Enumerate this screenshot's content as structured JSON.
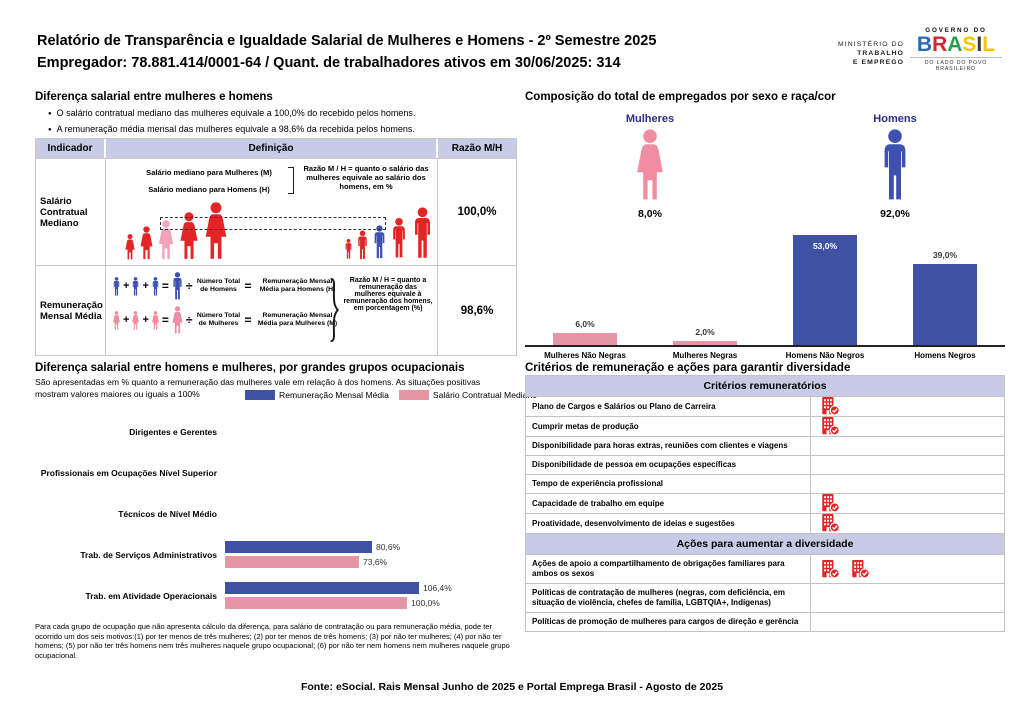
{
  "page": {
    "title": "Relatório de Transparência e Igualdade Salarial de Mulheres e Homens - 2º Semestre 2025",
    "subtitle": "Empregador: 78.881.414/0001-64 / Quant. de trabalhadores ativos em 30/06/2025: 314",
    "ministry": {
      "l1": "MINISTÉRIO DO",
      "l2": "TRABALHO",
      "l3": "E EMPREGO"
    },
    "gov": {
      "top": "GOVERNO DO",
      "brand_letters": [
        {
          "ch": "B",
          "color": "#2a6bb5"
        },
        {
          "ch": "R",
          "color": "#d3272e"
        },
        {
          "ch": "A",
          "color": "#2ba04c"
        },
        {
          "ch": "S",
          "color": "#f6c500"
        },
        {
          "ch": "I",
          "color": "#3a3a3a"
        },
        {
          "ch": "L",
          "color": "#f6c500"
        }
      ],
      "caption": "DO LADO DO POVO BRASILEIRO"
    }
  },
  "wage_gap": {
    "title": "Diferença salarial entre mulheres e homens",
    "bullets": [
      "O salário contratual mediano das mulheres equivale a 100,0% do recebido pelos homens.",
      "A remuneração média mensal das mulheres equivale a 98,6% da recebida pelos homens."
    ],
    "table_headers": [
      "Indicador",
      "Definição",
      "Razão M/H"
    ],
    "median_row": {
      "indicator": "Salário Contratual Mediano",
      "label_women": "Salário mediano para Mulheres (M)",
      "label_men": "Salário mediano para Homens (H)",
      "note": "Razão M / H = quanto o salário das mulheres equivale ao salário dos homens, em %",
      "ratio": "100,0%"
    },
    "average_row": {
      "indicator": "Remuneração Mensal Média",
      "men_divisor": "Número Total de Homens",
      "men_result": "Remuneração Mensal Média para Homens (H)",
      "women_divisor": "Número Total de Mulheres",
      "women_result": "Remuneração Mensal Média para Mulheres (M)",
      "note": "Razão M / H = quanto a remuneração das mulheres equivale à remuneração dos homens, em porcentagem (%)",
      "ratio": "98,6%"
    }
  },
  "composition": {
    "title": "Composição do total de empregados por sexo e raça/cor",
    "women_label": "Mulheres",
    "women_pct": "8,0%",
    "men_label": "Homens",
    "men_pct": "92,0%"
  },
  "occupational": {
    "title": "Diferença salarial entre homens e mulheres, por grandes grupos ocupacionais",
    "subtitle": "São apresentadas em % quanto a remuneração das mulheres vale em relação à dos homens. As situações positivas mostram valores maiores ou iguais a 100%",
    "footnote": "Para cada grupo de ocupação que não apresenta cálculo da diferença, para salário de contratação ou para remuneração média, pode ter ocorrido um dos seis motivos:(1) por ter menos de três mulheres; (2) por ter menos de três homens; (3) por não ter mulheres; (4) por não ter homens; (5) por não ter três homens nem três mulheres naquele grupo ocupacional; (6) por não ter nem homens nem mulheres naquele grupo ocupacional."
  },
  "criteria": {
    "title": "Critérios de remuneração e ações para garantir diversidade",
    "sections": [
      {
        "header": "Critérios remuneratórios",
        "rows": [
          {
            "label": "Plano de Cargos e Salários ou Plano de Carreira",
            "checks": 1
          },
          {
            "label": "Cumprir metas de produção",
            "checks": 1
          },
          {
            "label": "Disponibilidade para horas extras, reuniões com clientes e viagens",
            "checks": 0
          },
          {
            "label": "Disponibilidade de pessoa em ocupações específicas",
            "checks": 0
          },
          {
            "label": "Tempo de experiência profissional",
            "checks": 0
          },
          {
            "label": "Capacidade de trabalho em equipe",
            "checks": 1
          },
          {
            "label": "Proatividade, desenvolvimento de ideias e sugestões",
            "checks": 1
          }
        ]
      },
      {
        "header": "Ações para aumentar a diversidade",
        "rows": [
          {
            "label": "Ações de apoio a compartilhamento de obrigações familiares para ambos os sexos",
            "checks": 2
          },
          {
            "label": "Políticas de contratação de mulheres (negras, com deficiência, em situação de violência, chefes de família, LGBTQIA+, Indígenas)",
            "checks": 0
          },
          {
            "label": "Políticas de promoção de mulheres para cargos de direção e gerência",
            "checks": 0
          }
        ]
      }
    ]
  },
  "footer": "Fonte: eSocial. Rais Mensal Junho de 2025 e Portal Emprega Brasil - Agosto de 2025",
  "colors": {
    "blue": "#3f51a3",
    "pink_bar": "#e595a4",
    "red": "#e32526",
    "pink_icon": "#f18da3",
    "median_pink": "#f2a3ba",
    "median_blue": "#3e51ae",
    "navy_text": "#2c2e83",
    "lavender": "#c7cbe6"
  },
  "chart_data": [
    {
      "type": "bar",
      "title": "Composição do total de empregados por sexo e raça/cor",
      "categories": [
        "Mulheres Não Negras",
        "Mulheres Negras",
        "Homens Não Negros",
        "Homens Negros"
      ],
      "values": [
        6.0,
        2.0,
        53.0,
        39.0
      ],
      "labels": [
        "6,0%",
        "2,0%",
        "53,0%",
        "39,0%"
      ],
      "bar_colors": [
        "#e595a4",
        "#e595a4",
        "#3f51a3",
        "#3f51a3"
      ],
      "ylim": [
        0,
        57
      ],
      "grid": false,
      "summary": {
        "Mulheres": "8,0%",
        "Homens": "92,0%"
      }
    },
    {
      "type": "bar",
      "orientation": "horizontal",
      "title": "Diferença salarial entre homens e mulheres, por grandes grupos ocupacionais",
      "categories": [
        "Dirigentes e Gerentes",
        "Profissionais em Ocupações Nível Superior",
        "Técnicos de Nível Médio",
        "Trab. de Serviços Administrativos",
        "Trab. em Atividade Operacionais"
      ],
      "series": [
        {
          "name": "Remuneração Mensal Média",
          "color": "#3f51a3",
          "values": [
            null,
            null,
            null,
            80.6,
            106.4
          ],
          "labels": [
            "",
            "",
            "",
            "80,6%",
            "106,4%"
          ]
        },
        {
          "name": "Salário Contratual Mediano",
          "color": "#e595a4",
          "values": [
            null,
            null,
            null,
            73.6,
            100.0
          ],
          "labels": [
            "",
            "",
            "",
            "73,6%",
            "100,0%"
          ]
        }
      ],
      "xlim": [
        0,
        120
      ],
      "legend_position": "top",
      "grid": false
    }
  ]
}
